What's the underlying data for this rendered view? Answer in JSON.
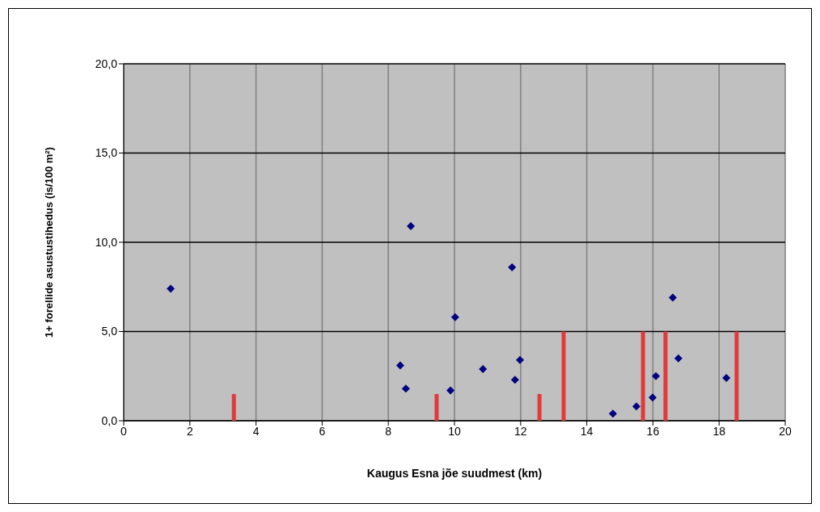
{
  "chart_data": {
    "type": "scatter",
    "xlabel": "Kaugus Esna jõe suudmest (km)",
    "ylabel": "1+ forellide asustustihedus (is/100 m²)",
    "xlim": [
      0,
      20
    ],
    "xticks": [
      0,
      2,
      4,
      6,
      8,
      10,
      12,
      14,
      16,
      18,
      20
    ],
    "ylim": [
      0,
      20
    ],
    "yticks": [
      {
        "value": 0,
        "label": "0,0"
      },
      {
        "value": 5,
        "label": "5,0"
      },
      {
        "value": 10,
        "label": "10,0"
      },
      {
        "value": 15,
        "label": "15,0"
      },
      {
        "value": 20,
        "label": "20,0"
      }
    ],
    "grid": true,
    "marker": "diamond",
    "series": [
      {
        "color": "#000080",
        "x": [
          1.42,
          8.36,
          8.53,
          8.68,
          9.88,
          10.02,
          10.86,
          11.74,
          11.83,
          11.98,
          14.79,
          15.5,
          15.99,
          16.09,
          16.6,
          16.77,
          18.22
        ],
        "values": [
          7.4,
          3.1,
          1.8,
          10.9,
          1.7,
          5.8,
          2.9,
          8.6,
          2.3,
          3.4,
          0.4,
          0.8,
          1.3,
          2.5,
          6.9,
          3.5,
          2.4
        ]
      },
      {
        "type": "bar",
        "color": "#e03a3a",
        "x": [
          3.33,
          9.46,
          12.57,
          13.3,
          15.7,
          16.38,
          18.53
        ],
        "values": [
          1.5,
          1.5,
          1.5,
          5,
          5,
          5,
          5
        ]
      }
    ]
  }
}
